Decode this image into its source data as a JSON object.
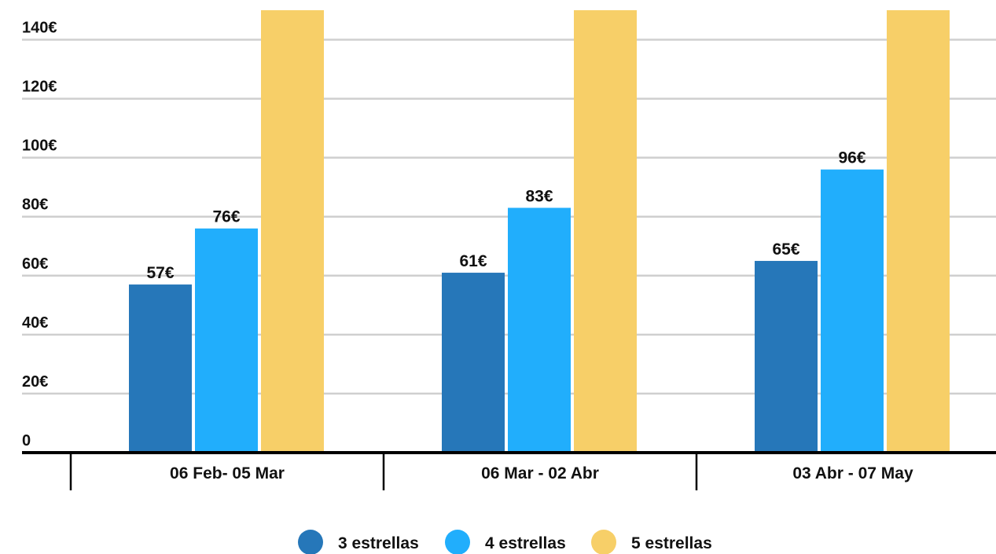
{
  "chart_data": {
    "type": "bar",
    "categories": [
      "06 Feb- 05 Mar",
      "06 Mar - 02 Abr",
      "03 Abr - 07 May"
    ],
    "series": [
      {
        "name": "3 estrellas",
        "values": [
          57,
          61,
          65
        ],
        "color": "#2677b9",
        "labels": [
          "57€",
          "61€",
          "65€"
        ]
      },
      {
        "name": "4 estrellas",
        "values": [
          76,
          83,
          96
        ],
        "color": "#21aefc",
        "labels": [
          "76€",
          "83€",
          "96€"
        ]
      },
      {
        "name": "5 estrellas",
        "values": [
          150,
          150,
          150
        ],
        "color": "#f7cf68",
        "labels": [
          "",
          "",
          ""
        ]
      }
    ],
    "yticks": [
      {
        "value": 0,
        "label": "0"
      },
      {
        "value": 20,
        "label": "20€"
      },
      {
        "value": 40,
        "label": "40€"
      },
      {
        "value": 60,
        "label": "60€"
      },
      {
        "value": 80,
        "label": "80€"
      },
      {
        "value": 100,
        "label": "100€"
      },
      {
        "value": 120,
        "label": "120€"
      },
      {
        "value": 140,
        "label": "140€"
      }
    ],
    "ylim": [
      0,
      150
    ],
    "grid": true,
    "legend_position": "bottom",
    "title": "",
    "xlabel": "",
    "ylabel": ""
  }
}
